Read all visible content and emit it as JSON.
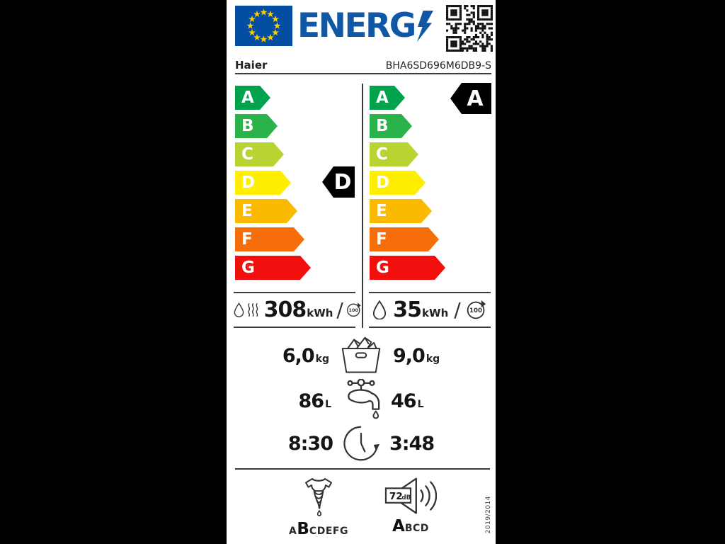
{
  "label": {
    "energy_word": "ENERG",
    "brand": "Haier",
    "model": "BHA6SD696M6DB9-S",
    "regulation": "2019/2014"
  },
  "scales": {
    "letters": [
      "A",
      "B",
      "C",
      "D",
      "E",
      "F",
      "G"
    ],
    "washdry_rating": "D",
    "wash_rating": "A"
  },
  "consumption": {
    "slash": "/",
    "washdry": {
      "value": "308",
      "unit": "kWh",
      "cycles": "100"
    },
    "wash": {
      "value": "35",
      "unit": "kWh",
      "cycles": "100"
    }
  },
  "capacity": {
    "washdry": "6,0",
    "wash": "9,0",
    "unit": "kg"
  },
  "water": {
    "washdry": "86",
    "wash": "46",
    "unit": "L"
  },
  "duration": {
    "washdry": "8:30",
    "wash": "3:48"
  },
  "spin": {
    "before": "A",
    "rating": "B",
    "after": "CDEFG"
  },
  "noise": {
    "value": "72",
    "unit": "dB",
    "rating": "A",
    "after": "BCD"
  },
  "colors": {
    "background": "#000000",
    "label_bg": "#ffffff",
    "text": "#1f1f1f",
    "line": "#3c3c3c",
    "icon_stroke": "#333333",
    "energy_blue": "#1057a5",
    "flag_blue": "#034ea2",
    "star_yellow": "#ffcc00",
    "indicator": "#000000",
    "scale": {
      "A": "#00a24d",
      "B": "#2bb34b",
      "C": "#b8d432",
      "D": "#ffee00",
      "E": "#fbba00",
      "F": "#f66e0b",
      "G": "#f1100d"
    }
  }
}
